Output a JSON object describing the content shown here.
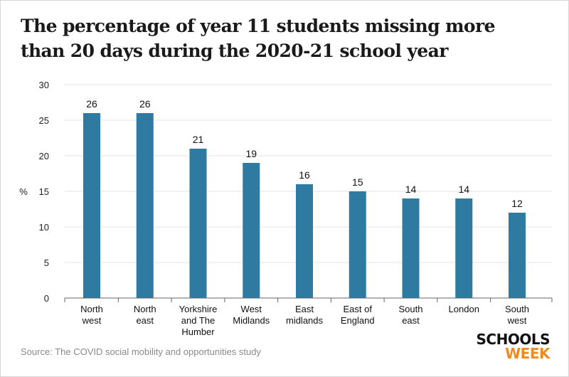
{
  "title": "The percentage of year 11 students missing more than 20 days during the 2020-21 school year",
  "source": "Source: The COVID social mobility and opportunities study",
  "logo": {
    "line1": "SCHOOLS",
    "line2": "WEEK"
  },
  "colors": {
    "bar": "#2e7aa1",
    "accent": "#f08a1c",
    "grid": "#e3e3e3"
  },
  "chart_data": {
    "type": "bar",
    "title": "The percentage of year 11 students missing more than 20 days during the 2020-21 school year",
    "xlabel": "",
    "ylabel": "%",
    "ylim": [
      0,
      30
    ],
    "yticks": [
      0,
      5,
      10,
      15,
      20,
      25,
      30
    ],
    "grid": true,
    "categories": [
      [
        "North",
        "west"
      ],
      [
        "North",
        "east"
      ],
      [
        "Yorkshire",
        "and The",
        "Humber"
      ],
      [
        "West",
        "Midlands"
      ],
      [
        "East",
        "midlands"
      ],
      [
        "East of",
        "England"
      ],
      [
        "South",
        "east"
      ],
      [
        "London"
      ],
      [
        "South",
        "west"
      ]
    ],
    "values": [
      26,
      26,
      21,
      19,
      16,
      15,
      14,
      14,
      12
    ]
  }
}
